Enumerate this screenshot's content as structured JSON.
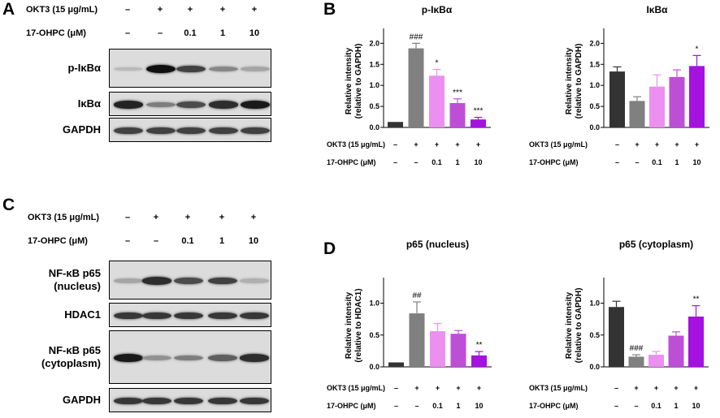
{
  "panels": {
    "A": "A",
    "B": "B",
    "C": "C",
    "D": "D"
  },
  "western_A": {
    "treat_rows": [
      {
        "label": "OKT3 (15 μg/mL)",
        "values": [
          "–",
          "+",
          "+",
          "+",
          "+"
        ]
      },
      {
        "label": "17-OHPC (μM)",
        "values": [
          "–",
          "–",
          "0.1",
          "1",
          "10"
        ]
      }
    ],
    "blots": [
      {
        "label": "p-IκBα",
        "intensity": [
          0.15,
          1.0,
          0.75,
          0.4,
          0.25
        ]
      },
      {
        "label": "IκBα",
        "intensity": [
          0.9,
          0.45,
          0.7,
          0.85,
          0.95
        ]
      },
      {
        "label": "GAPDH",
        "intensity": [
          0.75,
          0.75,
          0.75,
          0.75,
          0.75
        ]
      }
    ]
  },
  "western_C": {
    "treat_rows": [
      {
        "label": "OKT3 (15 μg/mL)",
        "values": [
          "–",
          "+",
          "+",
          "+",
          "+"
        ]
      },
      {
        "label": "17-OHPC (μM)",
        "values": [
          "–",
          "–",
          "0.1",
          "1",
          "10"
        ]
      }
    ],
    "blots": [
      {
        "label": "NF-κB p65\n(nucleus)",
        "intensity": [
          0.25,
          0.85,
          0.7,
          0.75,
          0.2
        ]
      },
      {
        "label": "HDAC1",
        "intensity": [
          0.8,
          0.8,
          0.8,
          0.8,
          0.8
        ]
      },
      {
        "label": "NF-κB p65\n(cytoplasm)",
        "intensity": [
          0.95,
          0.35,
          0.45,
          0.6,
          0.85
        ]
      },
      {
        "label": "GAPDH",
        "intensity": [
          0.8,
          0.8,
          0.8,
          0.8,
          0.8
        ]
      }
    ]
  },
  "colors": [
    "#333333",
    "#808080",
    "#eb8ff0",
    "#bd4fd6",
    "#a512e0"
  ],
  "chart_data": [
    {
      "type": "bar",
      "title": "p-IκBα",
      "ylabel": "Relative intensity\n(relative to GAPDH)",
      "yticks": [
        "0.0",
        "0.5",
        "1.0",
        "1.5",
        "2.0"
      ],
      "ylim": [
        0,
        2.2
      ],
      "values": [
        0.13,
        1.88,
        1.23,
        0.58,
        0.19
      ],
      "errors": [
        0.01,
        0.12,
        0.15,
        0.1,
        0.05
      ],
      "sig": [
        "",
        "###",
        "*",
        "***",
        "***"
      ],
      "treatments": [
        {
          "label": "OKT3 (15 μg/mL)",
          "values": [
            "–",
            "+",
            "+",
            "+",
            "+"
          ]
        },
        {
          "label": "17-OHPC (μM)",
          "values": [
            "–",
            "–",
            "0.1",
            "1",
            "10"
          ]
        }
      ]
    },
    {
      "type": "bar",
      "title": "IκBα",
      "ylabel": "Relative intensity\n(relative to GAPDH)",
      "yticks": [
        "0.0",
        "0.5",
        "1.0",
        "1.5",
        "2.0"
      ],
      "ylim": [
        0,
        2.2
      ],
      "values": [
        1.33,
        0.63,
        0.97,
        1.2,
        1.46
      ],
      "errors": [
        0.11,
        0.1,
        0.28,
        0.17,
        0.25
      ],
      "sig": [
        "",
        "",
        "",
        "",
        "*"
      ],
      "treatments": [
        {
          "label": "OKT3 (15 μg/mL)",
          "values": [
            "–",
            "+",
            "+",
            "+",
            "+"
          ]
        },
        {
          "label": "17-OHPC (μM)",
          "values": [
            "–",
            "–",
            "0.1",
            "1",
            "10"
          ]
        }
      ]
    },
    {
      "type": "bar",
      "title": "p65 (nucleus)",
      "ylabel": "Relative intensity\n(relative to HDAC1)",
      "yticks": [
        "0.0",
        "0.5",
        "1.0"
      ],
      "ylim": [
        0,
        1.3
      ],
      "values": [
        0.07,
        0.84,
        0.56,
        0.52,
        0.18
      ],
      "errors": [
        0.01,
        0.18,
        0.12,
        0.05,
        0.06
      ],
      "sig": [
        "",
        "##",
        "",
        "",
        "**"
      ],
      "treatments": [
        {
          "label": "OKT3 (15 μg/mL)",
          "values": [
            "–",
            "+",
            "+",
            "+",
            "+"
          ]
        },
        {
          "label": "17-OHPC (μM)",
          "values": [
            "–",
            "–",
            "0.1",
            "1",
            "10"
          ]
        }
      ]
    },
    {
      "type": "bar",
      "title": "p65 (cytoplasm)",
      "ylabel": "Relative intensity\n(relative to GAPDH)",
      "yticks": [
        "0.0",
        "0.5",
        "1.0"
      ],
      "ylim": [
        0,
        1.3
      ],
      "values": [
        0.94,
        0.16,
        0.19,
        0.49,
        0.79
      ],
      "errors": [
        0.09,
        0.03,
        0.05,
        0.06,
        0.17
      ],
      "sig": [
        "",
        "###",
        "",
        "",
        "**"
      ],
      "treatments": [
        {
          "label": "OKT3 (15 μg/mL)",
          "values": [
            "–",
            "+",
            "+",
            "+",
            "+"
          ]
        },
        {
          "label": "17-OHPC (μM)",
          "values": [
            "–",
            "–",
            "0.1",
            "1",
            "10"
          ]
        }
      ]
    }
  ]
}
